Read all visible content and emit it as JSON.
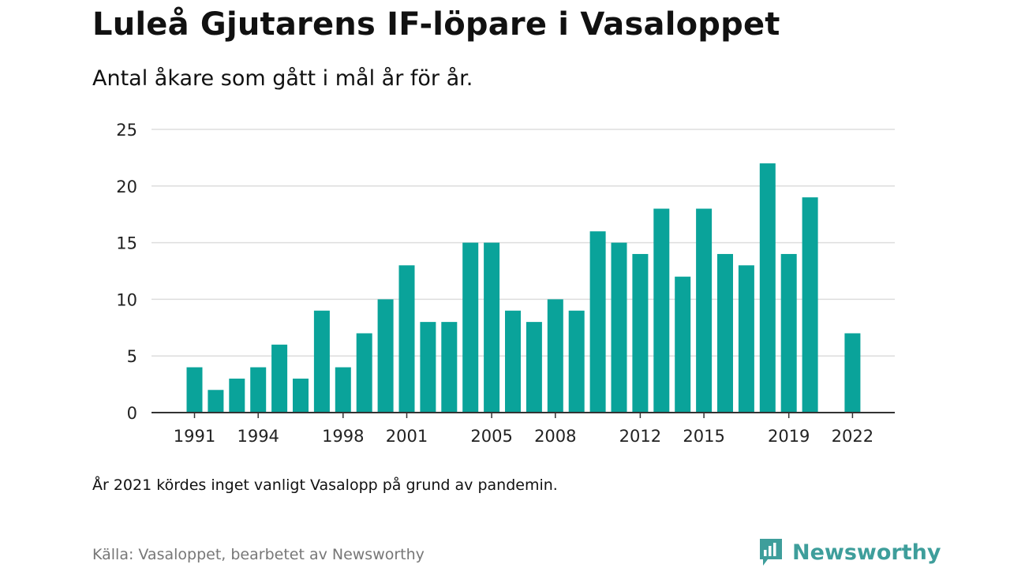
{
  "title": "Luleå Gjutarens IF-löpare i Vasaloppet",
  "subtitle": "Antal åkare som gått i mål år för år.",
  "note": "År 2021 kördes inget vanligt Vasalopp på grund av pandemin.",
  "source": "Källa: Vasaloppet, bearbetet av Newsworthy",
  "brand": {
    "name": "Newsworthy",
    "icon": "newsworthy-logo-icon"
  },
  "colors": {
    "bar": "#0aa39a",
    "brand": "#3e9e9b",
    "grid": "#dddddd",
    "axis": "#333333"
  },
  "chart_data": {
    "type": "bar",
    "x": [
      1991,
      1992,
      1993,
      1994,
      1995,
      1996,
      1997,
      1998,
      1999,
      2000,
      2001,
      2002,
      2003,
      2004,
      2005,
      2006,
      2007,
      2008,
      2009,
      2010,
      2011,
      2012,
      2013,
      2014,
      2015,
      2016,
      2017,
      2018,
      2019,
      2020,
      2021,
      2022
    ],
    "values": [
      4,
      2,
      3,
      4,
      6,
      3,
      9,
      4,
      7,
      10,
      13,
      8,
      8,
      15,
      15,
      9,
      8,
      10,
      9,
      16,
      15,
      14,
      18,
      12,
      18,
      14,
      13,
      22,
      14,
      19,
      null,
      7
    ],
    "xtick_labels": [
      "1991",
      "1994",
      "1998",
      "2001",
      "2005",
      "2008",
      "2012",
      "2015",
      "2019",
      "2022"
    ],
    "ytick_labels": [
      "0",
      "5",
      "10",
      "15",
      "20",
      "25"
    ],
    "ylim": [
      0,
      25
    ],
    "xlabel": "",
    "ylabel": "",
    "grid": true,
    "legend": "none"
  }
}
